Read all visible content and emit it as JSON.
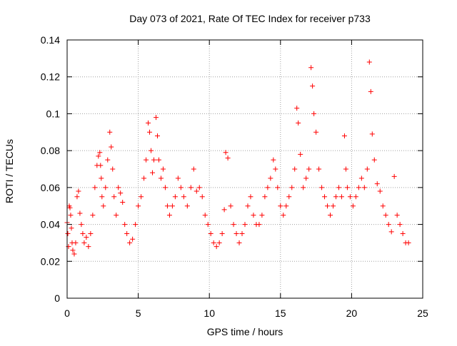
{
  "chart_data": {
    "type": "scatter",
    "title": "Day 073 of 2021, Rate Of TEC Index for receiver p733",
    "xlabel": "GPS time / hours",
    "ylabel": "ROTI / TECUs",
    "xlim": [
      0,
      25
    ],
    "ylim": [
      0,
      0.14
    ],
    "xticks": [
      "0",
      "5",
      "10",
      "15",
      "20",
      "25"
    ],
    "yticks": [
      "0",
      "0.02",
      "0.04",
      "0.06",
      "0.08",
      "0.1",
      "0.12",
      "0.14"
    ],
    "grid": true,
    "marker": "plus",
    "color": "#ff0000",
    "series": [
      {
        "x": [
          0.0,
          0.05,
          0.1,
          0.15,
          0.2,
          0.25,
          0.3,
          0.35,
          0.4,
          0.5,
          0.6,
          0.7,
          0.8,
          0.9,
          1.0,
          1.1,
          1.2,
          1.35,
          1.5,
          1.65,
          1.8,
          1.95,
          2.1,
          2.2,
          2.3,
          2.35,
          2.4,
          2.45,
          2.55,
          2.7,
          2.85,
          3.0,
          3.1,
          3.2,
          3.3,
          3.45,
          3.6,
          3.75,
          3.9,
          4.05,
          4.2,
          4.4,
          4.6,
          4.8,
          5.0,
          5.2,
          5.4,
          5.55,
          5.7,
          5.8,
          5.9,
          6.0,
          6.1,
          6.25,
          6.35,
          6.45,
          6.6,
          6.75,
          6.9,
          7.05,
          7.2,
          7.4,
          7.6,
          7.8,
          8.0,
          8.2,
          8.45,
          8.7,
          8.9,
          9.1,
          9.3,
          9.5,
          9.7,
          9.9,
          10.1,
          10.3,
          10.5,
          10.7,
          10.9,
          11.05,
          11.15,
          11.3,
          11.5,
          11.7,
          11.9,
          12.1,
          12.3,
          12.5,
          12.7,
          12.9,
          13.1,
          13.3,
          13.5,
          13.7,
          13.9,
          14.1,
          14.3,
          14.5,
          14.65,
          14.8,
          15.0,
          15.2,
          15.4,
          15.6,
          15.8,
          16.0,
          16.15,
          16.25,
          16.4,
          16.6,
          16.8,
          17.0,
          17.15,
          17.25,
          17.35,
          17.5,
          17.7,
          17.9,
          18.1,
          18.3,
          18.5,
          18.7,
          18.9,
          19.1,
          19.3,
          19.5,
          19.6,
          19.7,
          19.9,
          20.1,
          20.3,
          20.5,
          20.7,
          20.9,
          21.1,
          21.25,
          21.35,
          21.45,
          21.6,
          21.8,
          22.0,
          22.2,
          22.4,
          22.6,
          22.8,
          23.0,
          23.2,
          23.4,
          23.6,
          23.8,
          24.0
        ],
        "y": [
          0.041,
          0.035,
          0.028,
          0.05,
          0.049,
          0.045,
          0.038,
          0.03,
          0.026,
          0.024,
          0.03,
          0.055,
          0.058,
          0.046,
          0.04,
          0.035,
          0.03,
          0.033,
          0.028,
          0.035,
          0.045,
          0.06,
          0.072,
          0.077,
          0.079,
          0.072,
          0.065,
          0.055,
          0.05,
          0.06,
          0.075,
          0.09,
          0.082,
          0.07,
          0.055,
          0.045,
          0.06,
          0.057,
          0.052,
          0.04,
          0.035,
          0.03,
          0.032,
          0.04,
          0.05,
          0.055,
          0.065,
          0.075,
          0.095,
          0.09,
          0.08,
          0.068,
          0.075,
          0.098,
          0.088,
          0.075,
          0.065,
          0.07,
          0.06,
          0.05,
          0.045,
          0.05,
          0.055,
          0.065,
          0.06,
          0.055,
          0.05,
          0.06,
          0.07,
          0.058,
          0.06,
          0.055,
          0.045,
          0.04,
          0.035,
          0.03,
          0.028,
          0.03,
          0.035,
          0.048,
          0.079,
          0.076,
          0.05,
          0.04,
          0.035,
          0.03,
          0.035,
          0.04,
          0.05,
          0.055,
          0.045,
          0.04,
          0.04,
          0.045,
          0.055,
          0.06,
          0.065,
          0.075,
          0.07,
          0.06,
          0.05,
          0.045,
          0.05,
          0.055,
          0.06,
          0.07,
          0.103,
          0.095,
          0.078,
          0.06,
          0.065,
          0.07,
          0.125,
          0.115,
          0.1,
          0.09,
          0.07,
          0.06,
          0.055,
          0.05,
          0.045,
          0.05,
          0.055,
          0.06,
          0.055,
          0.088,
          0.07,
          0.06,
          0.055,
          0.05,
          0.055,
          0.06,
          0.065,
          0.06,
          0.07,
          0.128,
          0.112,
          0.089,
          0.075,
          0.062,
          0.058,
          0.05,
          0.045,
          0.04,
          0.036,
          0.066,
          0.045,
          0.04,
          0.035,
          0.03,
          0.03
        ]
      }
    ]
  }
}
